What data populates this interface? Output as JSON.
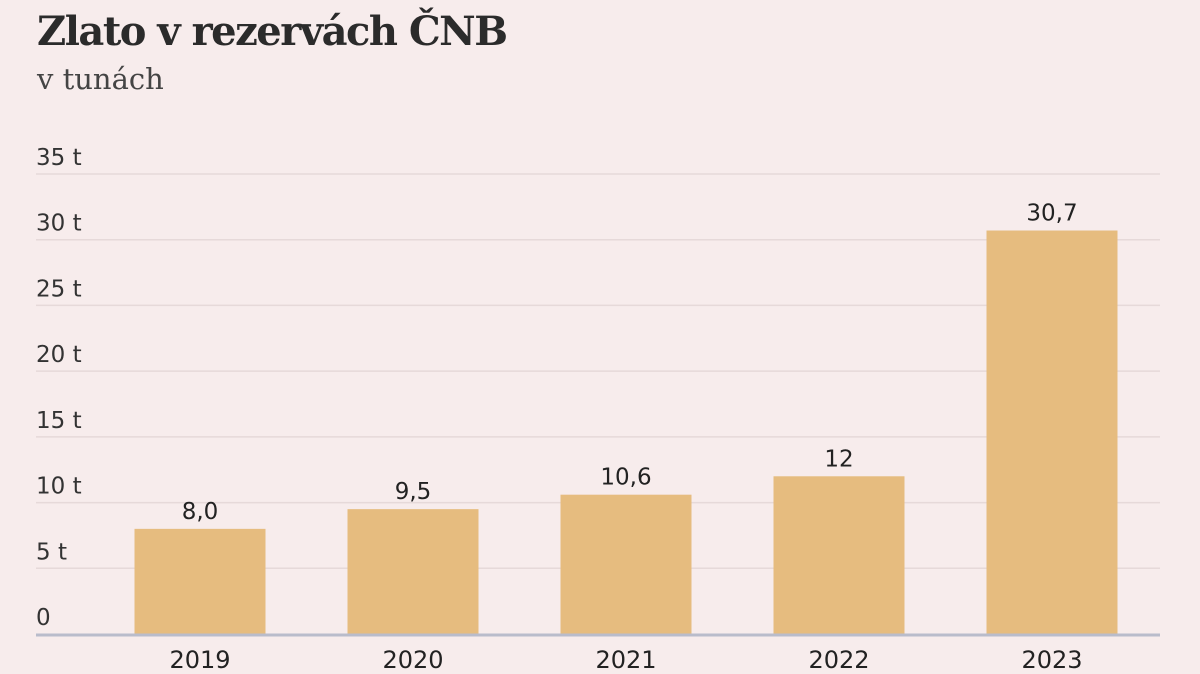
{
  "title": "Zlato v rezervách ČNB",
  "subtitle": "v tunách",
  "colors": {
    "background": "#f7ecec",
    "bar": "#e6bc7f",
    "grid": "#e6d9d9",
    "baseline": "#b9bccb"
  },
  "chart_data": {
    "type": "bar",
    "title": "Zlato v rezervách ČNB",
    "subtitle": "v tunách",
    "categories": [
      "2019",
      "2020",
      "2021",
      "2022",
      "2023"
    ],
    "values": [
      8.0,
      9.5,
      10.6,
      12,
      30.7
    ],
    "value_labels": [
      "8,0",
      "9,5",
      "10,6",
      "12",
      "30,7"
    ],
    "ylim": [
      0,
      35
    ],
    "yticks": [
      0,
      5,
      10,
      15,
      20,
      25,
      30,
      35
    ],
    "ytick_labels": [
      "0",
      "5 t",
      "10 t",
      "15 t",
      "20 t",
      "25 t",
      "30 t",
      "35 t"
    ],
    "grid": true,
    "legend": "none"
  }
}
